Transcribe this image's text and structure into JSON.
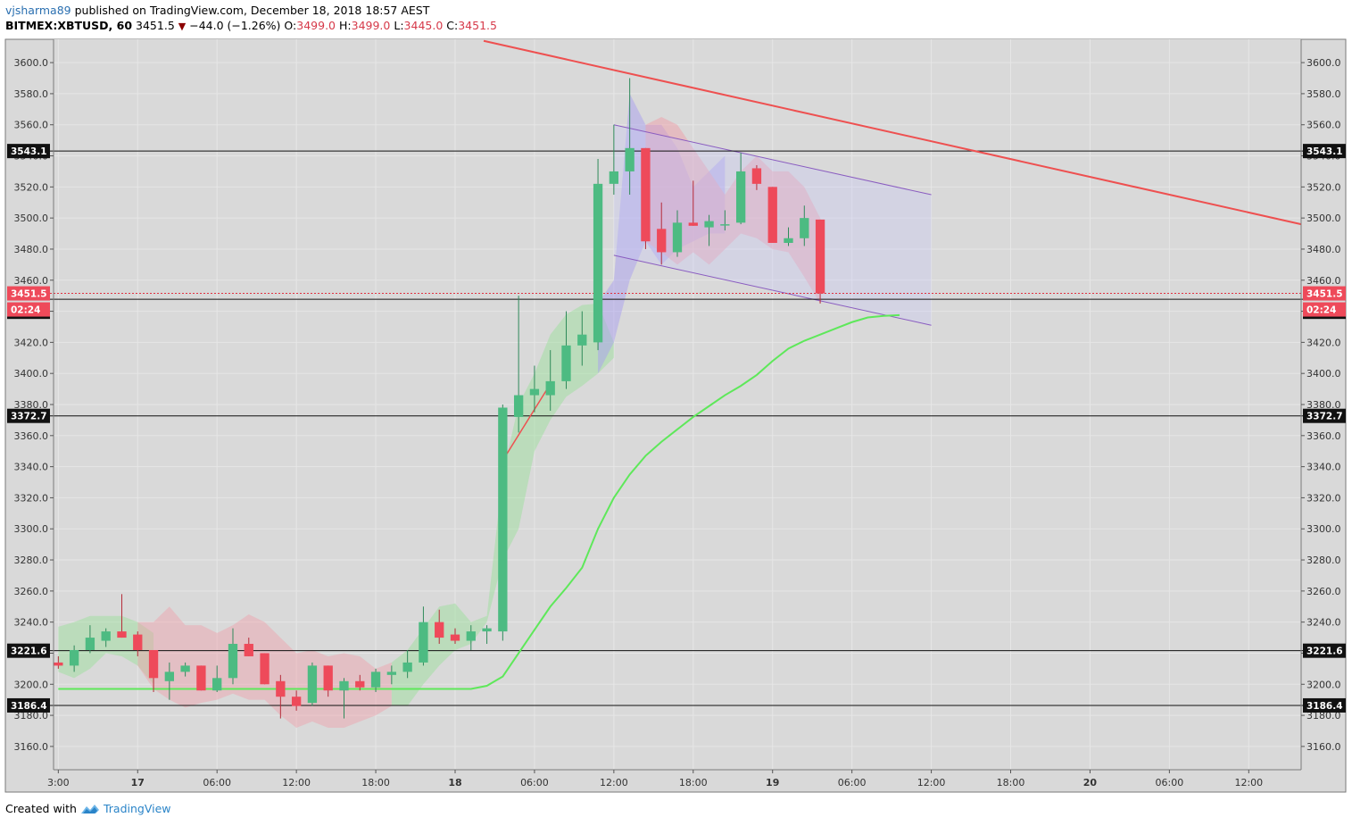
{
  "header": {
    "user": "vjsharma89",
    "published_text": "published on TradingView.com, December 18, 2018 18:57 AEST",
    "symbol": "BITMEX:XBTUSD, 60",
    "last": "3451.5",
    "change": "−44.0 (−1.26%)",
    "o_label": "O:",
    "o_value": "3499.0",
    "h_label": "H:",
    "h_value": "3499.0",
    "l_label": "L:",
    "l_value": "3445.0",
    "c_label": "C:",
    "c_value": "3451.5"
  },
  "footer": {
    "created_with": "Created with",
    "brand": "TradingView"
  },
  "colors": {
    "up": "#4dbb82",
    "down": "#ee4a5a",
    "trend": "#ee5050",
    "ma": "#5ee85a",
    "channel": "#8a5cc0"
  },
  "chart_data": {
    "type": "candlestick",
    "timeframe": "60",
    "ylim": [
      3145,
      3615
    ],
    "y_ticks": [
      3160,
      3180,
      3200,
      3220,
      3240,
      3260,
      3280,
      3300,
      3320,
      3340,
      3360,
      3380,
      3400,
      3420,
      3440,
      3460,
      3480,
      3500,
      3520,
      3540,
      3560,
      3580,
      3600
    ],
    "x_range": [
      -0.3,
      78.3
    ],
    "x_ticks": [
      {
        "i": 0,
        "label": "3:00"
      },
      {
        "i": 5,
        "label": "17"
      },
      {
        "i": 10,
        "label": "06:00"
      },
      {
        "i": 15,
        "label": "12:00"
      },
      {
        "i": 20,
        "label": "18:00"
      },
      {
        "i": 25,
        "label": "18"
      },
      {
        "i": 30,
        "label": "06:00"
      },
      {
        "i": 35,
        "label": "12:00"
      },
      {
        "i": 40,
        "label": "18:00"
      },
      {
        "i": 45,
        "label": "19"
      },
      {
        "i": 50,
        "label": "06:00"
      },
      {
        "i": 55,
        "label": "12:00"
      },
      {
        "i": 60,
        "label": "18:00"
      },
      {
        "i": 65,
        "label": "20"
      },
      {
        "i": 70,
        "label": "06:00"
      },
      {
        "i": 75,
        "label": "12:00"
      }
    ],
    "candles": [
      [
        3214,
        3218,
        3210,
        3212
      ],
      [
        3212,
        3225,
        3208,
        3222
      ],
      [
        3222,
        3238,
        3220,
        3230
      ],
      [
        3228,
        3236,
        3224,
        3234
      ],
      [
        3234,
        3258,
        3230,
        3230
      ],
      [
        3232,
        3234,
        3218,
        3222
      ],
      [
        3222,
        3222,
        3195,
        3204
      ],
      [
        3202,
        3214,
        3190,
        3208
      ],
      [
        3208,
        3214,
        3205,
        3212
      ],
      [
        3212,
        3212,
        3196,
        3196
      ],
      [
        3196,
        3212,
        3195,
        3204
      ],
      [
        3204,
        3236,
        3200,
        3226
      ],
      [
        3226,
        3230,
        3218,
        3218
      ],
      [
        3220,
        3220,
        3200,
        3200
      ],
      [
        3202,
        3206,
        3178,
        3192
      ],
      [
        3192,
        3196,
        3183,
        3186
      ],
      [
        3188,
        3214,
        3186,
        3212
      ],
      [
        3212,
        3212,
        3192,
        3196
      ],
      [
        3196,
        3204,
        3178,
        3202
      ],
      [
        3202,
        3206,
        3196,
        3198
      ],
      [
        3198,
        3210,
        3195,
        3208
      ],
      [
        3206,
        3212,
        3200,
        3208
      ],
      [
        3208,
        3222,
        3204,
        3214
      ],
      [
        3214,
        3250,
        3212,
        3240
      ],
      [
        3240,
        3248,
        3226,
        3230
      ],
      [
        3232,
        3236,
        3226,
        3228
      ],
      [
        3228,
        3238,
        3222,
        3234
      ],
      [
        3234,
        3238,
        3226,
        3236
      ],
      [
        3234,
        3380,
        3228,
        3378
      ],
      [
        3372,
        3450,
        3362,
        3386
      ],
      [
        3386,
        3405,
        3375,
        3390
      ],
      [
        3386,
        3415,
        3376,
        3395
      ],
      [
        3395,
        3440,
        3390,
        3418
      ],
      [
        3418,
        3440,
        3405,
        3425
      ],
      [
        3420,
        3538,
        3415,
        3522
      ],
      [
        3522,
        3560,
        3515,
        3530
      ],
      [
        3530,
        3590,
        3515,
        3545
      ],
      [
        3545,
        3545,
        3480,
        3485
      ],
      [
        3493,
        3510,
        3470,
        3478
      ],
      [
        3478,
        3505,
        3475,
        3497
      ],
      [
        3497,
        3524,
        3495,
        3495
      ],
      [
        3494,
        3502,
        3482,
        3498
      ],
      [
        3496,
        3505,
        3492,
        3496
      ],
      [
        3497,
        3542,
        3496,
        3530
      ],
      [
        3532,
        3534,
        3518,
        3522
      ],
      [
        3520,
        3520,
        3485,
        3484
      ],
      [
        3484,
        3494,
        3482,
        3487
      ],
      [
        3487,
        3508,
        3482,
        3500
      ],
      [
        3499,
        3499,
        3445,
        3451.5
      ]
    ],
    "moving_average": [
      [
        0,
        3197
      ],
      [
        3,
        3197
      ],
      [
        6,
        3197
      ],
      [
        10,
        3197
      ],
      [
        14,
        3197
      ],
      [
        18,
        3197
      ],
      [
        22,
        3197
      ],
      [
        26,
        3197
      ],
      [
        27,
        3199
      ],
      [
        28,
        3205
      ],
      [
        29,
        3220
      ],
      [
        30,
        3235
      ],
      [
        31,
        3250
      ],
      [
        32,
        3262
      ],
      [
        33,
        3275
      ],
      [
        34,
        3300
      ],
      [
        35,
        3320
      ],
      [
        36,
        3335
      ],
      [
        37,
        3347
      ],
      [
        38,
        3356
      ],
      [
        39,
        3364
      ],
      [
        40,
        3372
      ],
      [
        41,
        3379
      ],
      [
        42,
        3386
      ],
      [
        43,
        3392
      ],
      [
        44,
        3399
      ],
      [
        45,
        3408
      ],
      [
        46,
        3416
      ],
      [
        47,
        3421
      ],
      [
        48,
        3425
      ],
      [
        49,
        3429
      ],
      [
        50,
        3433
      ],
      [
        51,
        3436
      ],
      [
        52,
        3437
      ],
      [
        53,
        3437.5
      ]
    ],
    "horizontal_levels": [
      "3543.1",
      "3447.7",
      "3372.7",
      "3221.6",
      "3186.4"
    ],
    "level_values": [
      3543.1,
      3447.7,
      3372.7,
      3221.6,
      3186.4
    ],
    "last_price": "3451.5",
    "last_price_value": 3451.5,
    "countdown": "02:24",
    "trend_line": [
      [
        26.8,
        3614
      ],
      [
        78.3,
        3496
      ]
    ],
    "short_trend_line": [
      [
        28,
        3344
      ],
      [
        30.8,
        3390
      ]
    ],
    "channel": {
      "upper": [
        [
          35,
          3560
        ],
        [
          55,
          3515
        ]
      ],
      "lower": [
        [
          35,
          3476
        ],
        [
          55,
          3431
        ]
      ]
    },
    "bands": {
      "green_top": [
        [
          0,
          3237
        ],
        [
          1,
          3240
        ],
        [
          2,
          3244
        ],
        [
          3,
          3244
        ],
        [
          4,
          3244
        ],
        [
          5,
          3240
        ],
        [
          6,
          3233
        ]
      ],
      "green_bot": [
        [
          0,
          3208
        ],
        [
          1,
          3204
        ],
        [
          2,
          3210
        ],
        [
          3,
          3220
        ],
        [
          4,
          3218
        ],
        [
          5,
          3212
        ],
        [
          6,
          3200
        ]
      ],
      "red_top": [
        [
          5,
          3240
        ],
        [
          6,
          3240
        ],
        [
          7,
          3250
        ],
        [
          8,
          3238
        ],
        [
          9,
          3238
        ],
        [
          10,
          3233
        ],
        [
          11,
          3238
        ],
        [
          12,
          3245
        ],
        [
          13,
          3240
        ],
        [
          14,
          3230
        ],
        [
          15,
          3220
        ],
        [
          16,
          3222
        ],
        [
          17,
          3218
        ],
        [
          18,
          3220
        ],
        [
          19,
          3218
        ],
        [
          20,
          3210
        ],
        [
          21,
          3214
        ]
      ],
      "red_bot": [
        [
          5,
          3212
        ],
        [
          6,
          3197
        ],
        [
          7,
          3190
        ],
        [
          8,
          3185
        ],
        [
          9,
          3188
        ],
        [
          10,
          3190
        ],
        [
          11,
          3194
        ],
        [
          12,
          3190
        ],
        [
          13,
          3190
        ],
        [
          14,
          3180
        ],
        [
          15,
          3172
        ],
        [
          16,
          3176
        ],
        [
          17,
          3172
        ],
        [
          18,
          3172
        ],
        [
          19,
          3176
        ],
        [
          20,
          3180
        ],
        [
          21,
          3186
        ]
      ],
      "green2_top": [
        [
          21,
          3214
        ],
        [
          22,
          3222
        ],
        [
          23,
          3236
        ],
        [
          24,
          3250
        ],
        [
          25,
          3252
        ],
        [
          26,
          3240
        ],
        [
          27,
          3244
        ],
        [
          28,
          3335
        ],
        [
          29,
          3380
        ],
        [
          30,
          3400
        ],
        [
          31,
          3425
        ],
        [
          32,
          3438
        ],
        [
          33,
          3444
        ],
        [
          34,
          3445
        ],
        [
          35,
          3420
        ]
      ],
      "green2_bot": [
        [
          21,
          3186
        ],
        [
          22,
          3186
        ],
        [
          23,
          3200
        ],
        [
          24,
          3212
        ],
        [
          25,
          3222
        ],
        [
          26,
          3226
        ],
        [
          27,
          3240
        ],
        [
          28,
          3280
        ],
        [
          29,
          3300
        ],
        [
          30,
          3350
        ],
        [
          31,
          3370
        ],
        [
          32,
          3385
        ],
        [
          33,
          3392
        ],
        [
          34,
          3400
        ],
        [
          35,
          3410
        ]
      ],
      "blue_top": [
        [
          34,
          3445
        ],
        [
          35,
          3460
        ],
        [
          36,
          3580
        ],
        [
          37,
          3560
        ],
        [
          38,
          3560
        ],
        [
          39,
          3545
        ],
        [
          40,
          3520
        ],
        [
          41,
          3530
        ],
        [
          42,
          3540
        ]
      ],
      "blue_bot": [
        [
          34,
          3400
        ],
        [
          35,
          3420
        ],
        [
          36,
          3460
        ],
        [
          37,
          3485
        ],
        [
          38,
          3470
        ],
        [
          39,
          3480
        ],
        [
          40,
          3485
        ],
        [
          41,
          3490
        ],
        [
          42,
          3490
        ]
      ],
      "red2_top": [
        [
          37,
          3560
        ],
        [
          38,
          3565
        ],
        [
          39,
          3560
        ],
        [
          40,
          3545
        ],
        [
          41,
          3530
        ],
        [
          42,
          3515
        ],
        [
          43,
          3530
        ],
        [
          44,
          3540
        ],
        [
          45,
          3530
        ],
        [
          46,
          3530
        ],
        [
          47,
          3520
        ],
        [
          48,
          3500
        ]
      ],
      "red2_bot": [
        [
          37,
          3485
        ],
        [
          38,
          3478
        ],
        [
          39,
          3470
        ],
        [
          40,
          3478
        ],
        [
          41,
          3470
        ],
        [
          42,
          3480
        ],
        [
          43,
          3490
        ],
        [
          44,
          3487
        ],
        [
          45,
          3480
        ],
        [
          46,
          3478
        ],
        [
          47,
          3462
        ],
        [
          48,
          3445
        ]
      ]
    }
  }
}
